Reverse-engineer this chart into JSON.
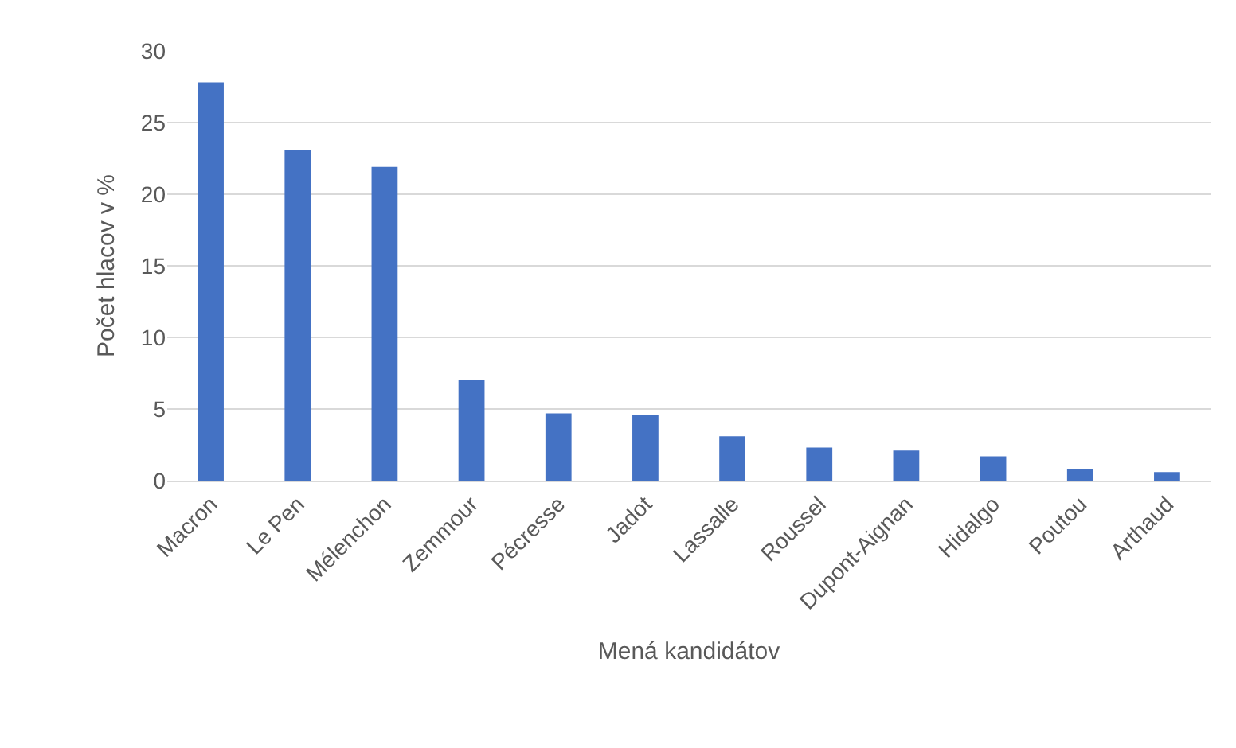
{
  "chart_data": {
    "type": "bar",
    "xlabel": "Mená kandidátov",
    "ylabel": "Počet hlacov v %",
    "categories": [
      "Macron",
      "Le Pen",
      "Mélenchon",
      "Zemmour",
      "Pécresse",
      "Jadot",
      "Lassalle",
      "Roussel",
      "Dupont-Aignan",
      "Hidalgo",
      "Poutou",
      "Arthaud"
    ],
    "values": [
      27.8,
      23.1,
      21.9,
      7.0,
      4.7,
      4.6,
      3.1,
      2.3,
      2.1,
      1.7,
      0.8,
      0.6
    ],
    "color": "#4472c4",
    "ylim": [
      0,
      30
    ],
    "yticks": [
      0,
      5,
      10,
      15,
      20,
      25,
      30
    ],
    "grid": "y"
  }
}
